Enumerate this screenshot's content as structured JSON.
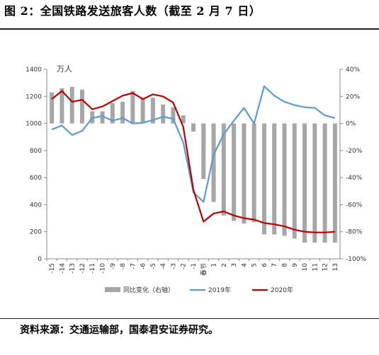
{
  "title": "图 2：全国铁路发送旅客人数（截至 2 月 7 日）",
  "source": "资料来源：交通运输部，国泰君安证券研究。",
  "chart_data": {
    "type": "bar+line",
    "unit_label": "万人",
    "categories": [
      "-15",
      "-14",
      "-13",
      "-12",
      "-11",
      "-10",
      "-9",
      "-8",
      "-7",
      "-6",
      "-5",
      "-4",
      "-3",
      "-2",
      "-1",
      "春节",
      "1",
      "2",
      "3",
      "4",
      "5",
      "6",
      "7",
      "8",
      "9",
      "10",
      "11",
      "12",
      "13"
    ],
    "y_left": {
      "ylim": [
        0,
        1400
      ],
      "ticks": [
        "0",
        "200",
        "400",
        "600",
        "800",
        "1000",
        "1200",
        "1400"
      ]
    },
    "y_right": {
      "ylim": [
        -100,
        40
      ],
      "ticks": [
        "-100%",
        "-80%",
        "-60%",
        "-40%",
        "-20%",
        "0%",
        "20%",
        "40%"
      ]
    },
    "colors": {
      "bar": "#a6a6a6",
      "line2019": "#5b9bd5",
      "line2020": "#c00000"
    },
    "series": [
      {
        "name": "同比变化（右轴）",
        "kind": "bar",
        "axis": "right",
        "values": [
          23,
          26,
          27,
          25,
          9,
          9,
          15,
          16,
          24,
          19,
          19,
          14,
          12,
          6,
          -6,
          -41,
          -58,
          -68,
          -72,
          -74,
          -73,
          -82,
          -82,
          -83,
          -85,
          -88,
          -88,
          -88,
          -88
        ]
      },
      {
        "name": "2019年",
        "kind": "line",
        "axis": "left",
        "values": [
          955,
          985,
          915,
          945,
          1040,
          1055,
          1020,
          1040,
          1000,
          1005,
          1025,
          1050,
          1035,
          860,
          490,
          420,
          770,
          920,
          1020,
          1115,
          1000,
          1275,
          1205,
          1160,
          1135,
          1120,
          1115,
          1060,
          1040
        ]
      },
      {
        "name": "2020年",
        "kind": "line",
        "axis": "left",
        "values": [
          1180,
          1240,
          1160,
          1175,
          1105,
          1125,
          1165,
          1205,
          1225,
          1180,
          1215,
          1200,
          1155,
          975,
          510,
          275,
          335,
          350,
          320,
          300,
          290,
          265,
          255,
          240,
          215,
          200,
          195,
          195,
          200
        ]
      }
    ],
    "legend": [
      "同比变化（右轴）",
      "2019年",
      "2020年"
    ],
    "legend_position": "bottom"
  }
}
